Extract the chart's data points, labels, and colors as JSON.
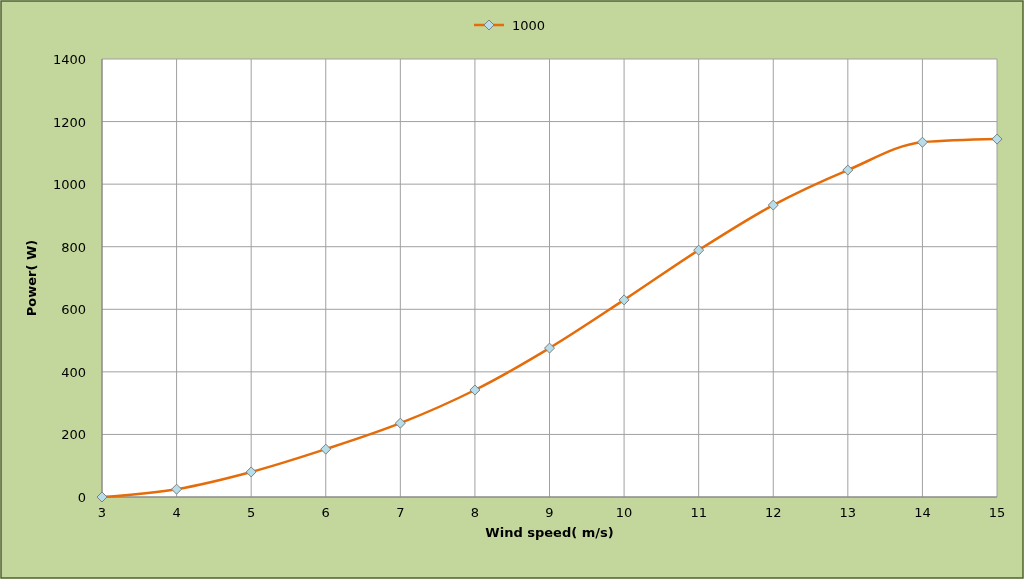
{
  "chart_data": {
    "type": "line",
    "xlabel": "Wind speed( m/s)",
    "ylabel": "Power( W)",
    "x": [
      3,
      4,
      5,
      6,
      7,
      8,
      9,
      10,
      11,
      12,
      13,
      14,
      15
    ],
    "series": [
      {
        "name": "1000",
        "color": "#e46c0a",
        "values": [
          0,
          25,
          80,
          153,
          236,
          342,
          476,
          630,
          789,
          933,
          1045,
          1134,
          1144
        ]
      }
    ],
    "xlim": [
      3,
      15
    ],
    "xticks": [
      3,
      4,
      5,
      6,
      7,
      8,
      9,
      10,
      11,
      12,
      13,
      14,
      15
    ],
    "ylim": [
      0,
      1400
    ],
    "yticks": [
      0,
      200,
      400,
      600,
      800,
      1000,
      1200,
      1400
    ],
    "grid": true,
    "legend": "top",
    "marker": "diamond",
    "line_style": "solid"
  }
}
